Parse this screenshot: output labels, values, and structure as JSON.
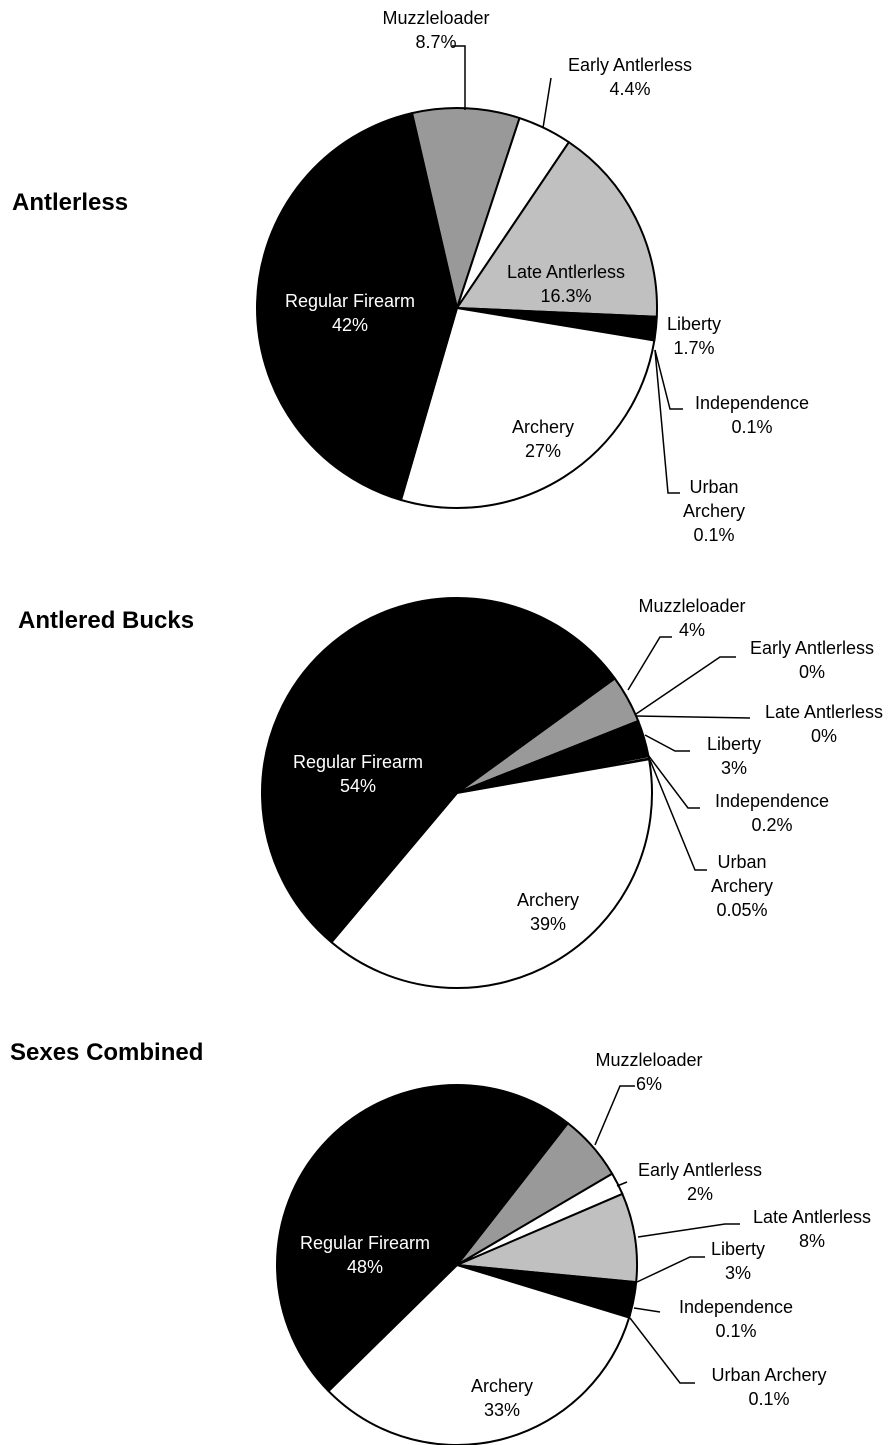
{
  "chart_data": [
    {
      "type": "pie",
      "title": "Antlerless",
      "categories": [
        "Muzzleloader",
        "Early Antlerless",
        "Late Antlerless",
        "Liberty",
        "Independence",
        "Urban Archery",
        "Archery",
        "Regular Firearm"
      ],
      "values": [
        8.7,
        4.4,
        16.3,
        1.7,
        0.1,
        0.1,
        27,
        42
      ],
      "value_labels": [
        "8.7%",
        "4.4%",
        "16.3%",
        "1.7%",
        "0.1%",
        "0.1%",
        "27%",
        "42%"
      ],
      "colors": [
        "#999999",
        "#ffffff",
        "#c0c0c0",
        "#000000",
        "#ffffff",
        "#000000",
        "#ffffff",
        "#000000"
      ]
    },
    {
      "type": "pie",
      "title": "Antlered Bucks",
      "categories": [
        "Muzzleloader",
        "Early Antlerless",
        "Late Antlerless",
        "Liberty",
        "Independence",
        "Urban Archery",
        "Archery",
        "Regular Firearm"
      ],
      "values": [
        4,
        0,
        0,
        3,
        0.2,
        0.05,
        39,
        54
      ],
      "value_labels": [
        "4%",
        "0%",
        "0%",
        "3%",
        "0.2%",
        "0.05%",
        "39%",
        "54%"
      ],
      "colors": [
        "#999999",
        "#ffffff",
        "#c0c0c0",
        "#000000",
        "#ffffff",
        "#000000",
        "#ffffff",
        "#000000"
      ]
    },
    {
      "type": "pie",
      "title": "Sexes Combined",
      "categories": [
        "Muzzleloader",
        "Early Antlerless",
        "Late Antlerless",
        "Liberty",
        "Independence",
        "Urban Archery",
        "Archery",
        "Regular Firearm"
      ],
      "values": [
        6,
        2,
        8,
        3,
        0.1,
        0.1,
        33,
        48
      ],
      "value_labels": [
        "6%",
        "2%",
        "8%",
        "3%",
        "0.1%",
        "0.1%",
        "33%",
        "48%"
      ],
      "colors": [
        "#999999",
        "#ffffff",
        "#c0c0c0",
        "#000000",
        "#ffffff",
        "#000000",
        "#ffffff",
        "#000000"
      ]
    }
  ]
}
